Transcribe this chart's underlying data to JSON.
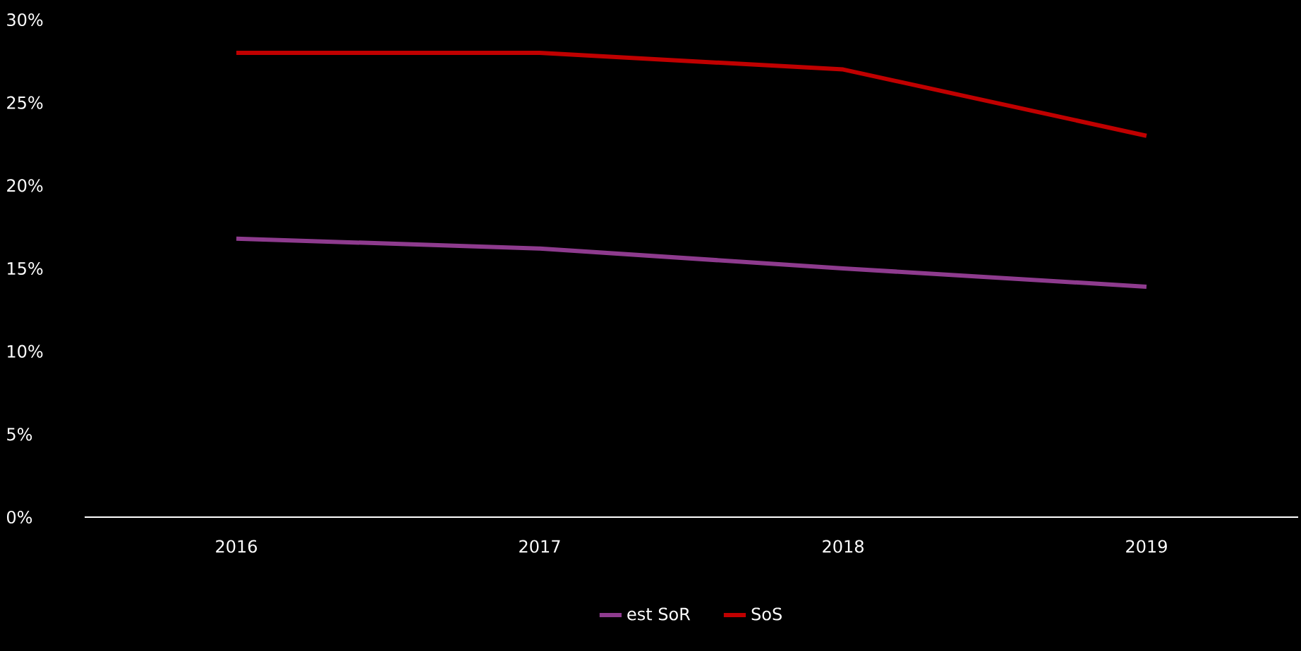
{
  "chart_data": {
    "type": "line",
    "categories": [
      "2016",
      "2017",
      "2018",
      "2019"
    ],
    "series": [
      {
        "name": "est SoR",
        "color": "#8e3b8e",
        "values": [
          16.8,
          16.2,
          15.0,
          13.9
        ]
      },
      {
        "name": "SoS",
        "color": "#c00000",
        "values": [
          28,
          28,
          27,
          23
        ]
      }
    ],
    "ylim": [
      0,
      30
    ],
    "yticks": [
      {
        "value": 0,
        "label": "0%"
      },
      {
        "value": 5,
        "label": "5%"
      },
      {
        "value": 10,
        "label": "10%"
      },
      {
        "value": 15,
        "label": "15%"
      },
      {
        "value": 20,
        "label": "20%"
      },
      {
        "value": 25,
        "label": "25%"
      },
      {
        "value": 30,
        "label": "30%"
      }
    ],
    "grid": false,
    "legend": "bottom",
    "marker": "none",
    "line_style": "solid"
  }
}
